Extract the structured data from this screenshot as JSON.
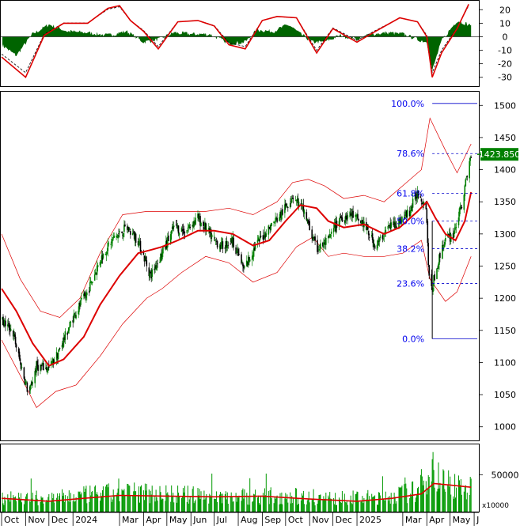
{
  "chart_data": [
    {
      "type": "line",
      "panel": "oscillator",
      "ylim": [
        -36,
        26
      ],
      "y_ticks": [
        20,
        10,
        0,
        -10,
        -20,
        -30
      ],
      "series": [],
      "histogram_points": [
        [
          "2023-10-01",
          -6
        ],
        [
          "2023-10-20",
          -14
        ],
        [
          "2023-11-10",
          2
        ],
        [
          "2023-12-01",
          9
        ],
        [
          "2023-12-25",
          4
        ],
        [
          "2024-01-20",
          3
        ],
        [
          "2024-02-15",
          1
        ],
        [
          "2024-03-10",
          4
        ],
        [
          "2024-04-01",
          -4
        ],
        [
          "2024-04-20",
          -2
        ],
        [
          "2024-05-10",
          3
        ],
        [
          "2024-06-01",
          2
        ],
        [
          "2024-06-25",
          2
        ],
        [
          "2024-07-20",
          -5
        ],
        [
          "2024-08-10",
          -4
        ],
        [
          "2024-08-25",
          5
        ],
        [
          "2024-09-15",
          4
        ],
        [
          "2024-10-05",
          9
        ],
        [
          "2024-10-20",
          2
        ],
        [
          "2024-11-05",
          -4
        ],
        [
          "2024-11-20",
          -4
        ],
        [
          "2024-12-10",
          1
        ],
        [
          "2025-01-01",
          -2
        ],
        [
          "2025-01-20",
          2
        ],
        [
          "2025-02-10",
          3
        ],
        [
          "2025-03-01",
          2
        ],
        [
          "2025-03-20",
          -2
        ],
        [
          "2025-04-01",
          -4
        ],
        [
          "2025-04-08",
          -25
        ],
        [
          "2025-04-20",
          -3
        ],
        [
          "2025-05-10",
          12
        ],
        [
          "2025-05-25",
          9
        ]
      ],
      "signal_points": [
        [
          "2023-10-01",
          -15
        ],
        [
          "2023-11-01",
          -30
        ],
        [
          "2023-11-25",
          1
        ],
        [
          "2023-12-20",
          10
        ],
        [
          "2024-01-20",
          10
        ],
        [
          "2024-02-15",
          21
        ],
        [
          "2024-03-01",
          23
        ],
        [
          "2024-03-15",
          12
        ],
        [
          "2024-04-01",
          4
        ],
        [
          "2024-04-20",
          -9
        ],
        [
          "2024-05-15",
          11
        ],
        [
          "2024-06-10",
          12
        ],
        [
          "2024-07-01",
          8
        ],
        [
          "2024-07-20",
          -6
        ],
        [
          "2024-08-10",
          -9
        ],
        [
          "2024-09-01",
          12
        ],
        [
          "2024-09-20",
          15
        ],
        [
          "2024-10-15",
          14
        ],
        [
          "2024-11-10",
          -12
        ],
        [
          "2024-12-01",
          6
        ],
        [
          "2025-01-01",
          -4
        ],
        [
          "2025-01-25",
          4
        ],
        [
          "2025-02-25",
          14
        ],
        [
          "2025-03-20",
          11
        ],
        [
          "2025-04-01",
          0
        ],
        [
          "2025-04-08",
          -30
        ],
        [
          "2025-04-20",
          -12
        ],
        [
          "2025-05-10",
          6
        ],
        [
          "2025-05-25",
          24
        ]
      ]
    },
    {
      "type": "candlestick",
      "panel": "price",
      "ylim": [
        980,
        1520
      ],
      "y_ticks": [
        1500,
        1450,
        1400,
        1350,
        1300,
        1250,
        1200,
        1150,
        1100,
        1050,
        1000
      ],
      "last_price_label": "1423.850",
      "last_price": 1423.85,
      "x_range": [
        "2023-10-01",
        "2025-06-05"
      ],
      "close_path": [
        [
          "2023-10-01",
          1165
        ],
        [
          "2023-10-15",
          1150
        ],
        [
          "2023-10-25",
          1100
        ],
        [
          "2023-11-05",
          1050
        ],
        [
          "2023-11-15",
          1095
        ],
        [
          "2023-12-01",
          1090
        ],
        [
          "2023-12-15",
          1120
        ],
        [
          "2024-01-01",
          1170
        ],
        [
          "2024-01-20",
          1210
        ],
        [
          "2024-02-05",
          1260
        ],
        [
          "2024-02-20",
          1290
        ],
        [
          "2024-03-10",
          1310
        ],
        [
          "2024-03-25",
          1290
        ],
        [
          "2024-04-10",
          1235
        ],
        [
          "2024-04-25",
          1270
        ],
        [
          "2024-05-10",
          1310
        ],
        [
          "2024-05-25",
          1305
        ],
        [
          "2024-06-10",
          1325
        ],
        [
          "2024-06-25",
          1300
        ],
        [
          "2024-07-10",
          1280
        ],
        [
          "2024-07-25",
          1290
        ],
        [
          "2024-08-08",
          1245
        ],
        [
          "2024-08-25",
          1285
        ],
        [
          "2024-09-10",
          1310
        ],
        [
          "2024-09-25",
          1330
        ],
        [
          "2024-10-10",
          1360
        ],
        [
          "2024-10-25",
          1335
        ],
        [
          "2024-11-10",
          1275
        ],
        [
          "2024-11-25",
          1290
        ],
        [
          "2024-12-10",
          1325
        ],
        [
          "2024-12-25",
          1330
        ],
        [
          "2025-01-10",
          1315
        ],
        [
          "2025-01-25",
          1280
        ],
        [
          "2025-02-10",
          1310
        ],
        [
          "2025-02-25",
          1320
        ],
        [
          "2025-03-10",
          1335
        ],
        [
          "2025-03-20",
          1365
        ],
        [
          "2025-03-31",
          1345
        ],
        [
          "2025-04-05",
          1200
        ],
        [
          "2025-04-12",
          1240
        ],
        [
          "2025-04-22",
          1285
        ],
        [
          "2025-05-05",
          1300
        ],
        [
          "2025-05-15",
          1340
        ],
        [
          "2025-05-28",
          1423.85
        ]
      ],
      "ma_path": [
        [
          "2023-10-01",
          1215
        ],
        [
          "2023-10-20",
          1180
        ],
        [
          "2023-11-10",
          1130
        ],
        [
          "2023-12-01",
          1095
        ],
        [
          "2023-12-20",
          1105
        ],
        [
          "2024-01-15",
          1140
        ],
        [
          "2024-02-05",
          1190
        ],
        [
          "2024-03-01",
          1235
        ],
        [
          "2024-03-25",
          1270
        ],
        [
          "2024-04-10",
          1275
        ],
        [
          "2024-04-25",
          1280
        ],
        [
          "2024-05-15",
          1290
        ],
        [
          "2024-06-10",
          1305
        ],
        [
          "2024-07-01",
          1305
        ],
        [
          "2024-07-25",
          1300
        ],
        [
          "2024-08-20",
          1282
        ],
        [
          "2024-09-10",
          1290
        ],
        [
          "2024-10-01",
          1320
        ],
        [
          "2024-10-20",
          1345
        ],
        [
          "2024-11-10",
          1340
        ],
        [
          "2024-11-25",
          1320
        ],
        [
          "2024-12-15",
          1310
        ],
        [
          "2025-01-10",
          1315
        ],
        [
          "2025-02-05",
          1300
        ],
        [
          "2025-02-25",
          1310
        ],
        [
          "2025-03-20",
          1335
        ],
        [
          "2025-04-01",
          1350
        ],
        [
          "2025-04-12",
          1325
        ],
        [
          "2025-04-25",
          1300
        ],
        [
          "2025-05-08",
          1290
        ],
        [
          "2025-05-20",
          1320
        ],
        [
          "2025-05-28",
          1365
        ]
      ],
      "band_upper": [
        [
          "2023-10-01",
          1300
        ],
        [
          "2023-10-25",
          1230
        ],
        [
          "2023-11-20",
          1180
        ],
        [
          "2023-12-15",
          1170
        ],
        [
          "2024-01-10",
          1200
        ],
        [
          "2024-02-05",
          1270
        ],
        [
          "2024-03-05",
          1330
        ],
        [
          "2024-04-05",
          1335
        ],
        [
          "2024-04-25",
          1335
        ],
        [
          "2024-05-20",
          1335
        ],
        [
          "2024-06-20",
          1335
        ],
        [
          "2024-07-20",
          1340
        ],
        [
          "2024-08-20",
          1330
        ],
        [
          "2024-09-20",
          1350
        ],
        [
          "2024-10-10",
          1380
        ],
        [
          "2024-10-30",
          1385
        ],
        [
          "2024-11-20",
          1375
        ],
        [
          "2024-12-15",
          1355
        ],
        [
          "2025-01-10",
          1360
        ],
        [
          "2025-02-05",
          1350
        ],
        [
          "2025-03-01",
          1375
        ],
        [
          "2025-03-25",
          1400
        ],
        [
          "2025-04-05",
          1480
        ],
        [
          "2025-04-25",
          1430
        ],
        [
          "2025-05-10",
          1395
        ],
        [
          "2025-05-28",
          1440
        ]
      ],
      "band_lower": [
        [
          "2023-10-01",
          1135
        ],
        [
          "2023-10-25",
          1080
        ],
        [
          "2023-11-15",
          1030
        ],
        [
          "2023-12-10",
          1055
        ],
        [
          "2024-01-05",
          1065
        ],
        [
          "2024-02-05",
          1110
        ],
        [
          "2024-03-05",
          1160
        ],
        [
          "2024-04-05",
          1200
        ],
        [
          "2024-04-25",
          1215
        ],
        [
          "2024-05-20",
          1240
        ],
        [
          "2024-06-20",
          1265
        ],
        [
          "2024-07-20",
          1255
        ],
        [
          "2024-08-20",
          1225
        ],
        [
          "2024-09-20",
          1240
        ],
        [
          "2024-10-15",
          1280
        ],
        [
          "2024-11-05",
          1295
        ],
        [
          "2024-11-25",
          1265
        ],
        [
          "2024-12-15",
          1270
        ],
        [
          "2025-01-10",
          1265
        ],
        [
          "2025-02-05",
          1265
        ],
        [
          "2025-03-01",
          1270
        ],
        [
          "2025-03-25",
          1290
        ],
        [
          "2025-04-05",
          1230
        ],
        [
          "2025-04-25",
          1195
        ],
        [
          "2025-05-10",
          1210
        ],
        [
          "2025-05-28",
          1265
        ]
      ],
      "fibonacci": {
        "start_date": "2025-04-08",
        "end_date": "2025-06-05",
        "levels": [
          {
            "label": "100.0%",
            "price": 1503,
            "solid": true
          },
          {
            "label": "78.6%",
            "price": 1425,
            "solid": false
          },
          {
            "label": "61.8%",
            "price": 1363,
            "solid": false
          },
          {
            "label": "50.0%",
            "price": 1320,
            "solid": false
          },
          {
            "label": "38.2%",
            "price": 1277,
            "solid": false
          },
          {
            "label": "23.6%",
            "price": 1223,
            "solid": false
          },
          {
            "label": "0.0%",
            "price": 1137,
            "solid": true
          }
        ]
      }
    },
    {
      "type": "bar",
      "panel": "volume",
      "ylim": [
        0,
        90000
      ],
      "y_ticks": [
        50000
      ],
      "scale_label": "x10000",
      "volume_level": [
        [
          "2023-10-01",
          25000
        ],
        [
          "2023-12-01",
          22000
        ],
        [
          "2024-02-01",
          30000
        ],
        [
          "2024-04-01",
          33000
        ],
        [
          "2024-06-01",
          28000
        ],
        [
          "2024-08-01",
          26000
        ],
        [
          "2024-10-01",
          27000
        ],
        [
          "2024-12-01",
          22000
        ],
        [
          "2025-02-01",
          24000
        ],
        [
          "2025-03-20",
          35000
        ],
        [
          "2025-04-08",
          80000
        ],
        [
          "2025-04-20",
          50000
        ],
        [
          "2025-05-10",
          45000
        ],
        [
          "2025-05-28",
          38000
        ]
      ],
      "ma_path": [
        [
          "2023-10-01",
          18000
        ],
        [
          "2023-12-01",
          14000
        ],
        [
          "2024-01-15",
          18000
        ],
        [
          "2024-03-01",
          22000
        ],
        [
          "2024-05-01",
          21000
        ],
        [
          "2024-07-01",
          20000
        ],
        [
          "2024-09-01",
          21000
        ],
        [
          "2024-11-01",
          17000
        ],
        [
          "2025-01-01",
          14000
        ],
        [
          "2025-02-15",
          18000
        ],
        [
          "2025-03-25",
          24000
        ],
        [
          "2025-04-10",
          38000
        ],
        [
          "2025-05-01",
          36000
        ],
        [
          "2025-05-28",
          33000
        ]
      ]
    }
  ],
  "x_axis": {
    "labels": [
      {
        "text": "Oct",
        "date": "2023-10-01"
      },
      {
        "text": "Nov",
        "date": "2023-11-01"
      },
      {
        "text": "Dec",
        "date": "2023-12-01"
      },
      {
        "text": "2024",
        "date": "2024-01-01"
      },
      {
        "text": "Mar",
        "date": "2024-03-01"
      },
      {
        "text": "Apr",
        "date": "2024-04-01"
      },
      {
        "text": "May",
        "date": "2024-05-01"
      },
      {
        "text": "Jun",
        "date": "2024-06-01"
      },
      {
        "text": "Jul",
        "date": "2024-07-01"
      },
      {
        "text": "Aug",
        "date": "2024-08-01"
      },
      {
        "text": "Sep",
        "date": "2024-09-01"
      },
      {
        "text": "Oct",
        "date": "2024-10-01"
      },
      {
        "text": "Nov",
        "date": "2024-11-01"
      },
      {
        "text": "Dec",
        "date": "2024-12-01"
      },
      {
        "text": "2025",
        "date": "2025-01-01"
      },
      {
        "text": "Mar",
        "date": "2025-03-01"
      },
      {
        "text": "Apr",
        "date": "2025-04-01"
      },
      {
        "text": "May",
        "date": "2025-05-01"
      },
      {
        "text": "J",
        "date": "2025-06-01"
      }
    ]
  },
  "colors": {
    "up": "#008000",
    "down": "#006400",
    "histogram": "#006400",
    "ma": "#dd0000",
    "band": "#dd0000",
    "fib_line": "#0000cc",
    "fib_text": "#0000ee",
    "last_price_bg": "#008000",
    "volume": "#009900"
  }
}
